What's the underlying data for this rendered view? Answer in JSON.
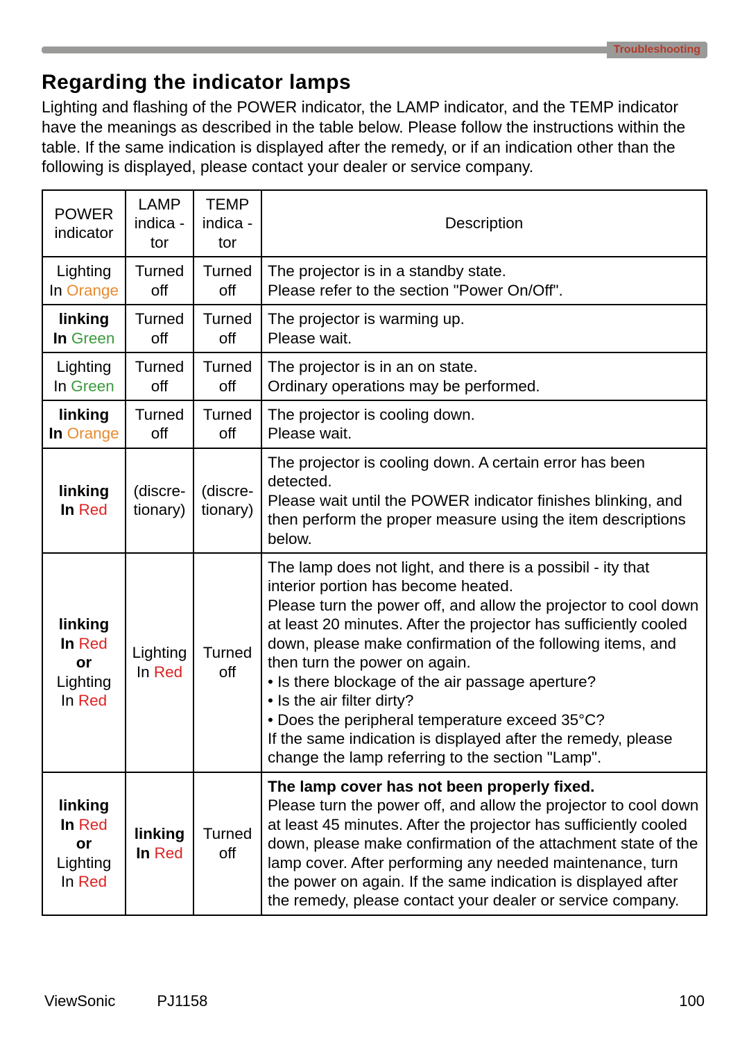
{
  "header": {
    "breadcrumb": "Troubleshooting",
    "title": "Regarding the indicator lamps",
    "intro": "Lighting and flashing of the POWER indicator, the LAMP indicator, and the TEMP indicator have the meanings as described in the table below. Please follow the instructions within the table. If the same indication is displayed after the remedy, or if an indication other than the following is displayed, please contact your dealer or service company."
  },
  "table": {
    "columns": {
      "power": "POWER indicator",
      "lamp": "LAMP indica - tor",
      "temp": "TEMP indica - tor",
      "desc": "Description"
    },
    "rows": [
      {
        "power_pre": "Lighting",
        "power_in": "In ",
        "power_color_word": "Orange",
        "power_color": "orange",
        "power_bold": false,
        "lamp": "Turned off",
        "lamp_bold": false,
        "lamp_color": "",
        "temp": "Turned off",
        "desc_strong": "",
        "desc_main": "The projector is in a standby state.",
        "desc_rest": "Please refer to the section \"Power On/Off\"."
      },
      {
        "power_pre": "linking",
        "power_in": "In ",
        "power_color_word": "Green",
        "power_color": "green",
        "power_bold": true,
        "lamp": "Turned off",
        "lamp_bold": false,
        "lamp_color": "",
        "temp": "Turned off",
        "desc_strong": "",
        "desc_main": "The projector is warming up.",
        "desc_rest": "Please wait."
      },
      {
        "power_pre": "Lighting",
        "power_in": "In ",
        "power_color_word": "Green",
        "power_color": "green",
        "power_bold": false,
        "lamp": "Turned off",
        "lamp_bold": false,
        "lamp_color": "",
        "temp": "Turned off",
        "desc_strong": "",
        "desc_main": "The projector is in an on state.",
        "desc_rest": "Ordinary operations may be performed."
      },
      {
        "power_pre": "linking",
        "power_in": "In ",
        "power_color_word": "Orange",
        "power_color": "orange",
        "power_bold": true,
        "lamp": "Turned off",
        "lamp_bold": false,
        "lamp_color": "",
        "temp": "Turned off",
        "desc_strong": "",
        "desc_main": "The projector is cooling down.",
        "desc_rest": "Please wait."
      },
      {
        "power_pre": "linking",
        "power_in": "In ",
        "power_color_word": "Red",
        "power_color": "red",
        "power_bold": true,
        "lamp": "(discre-tionary)",
        "lamp_bold": false,
        "lamp_color": "",
        "temp": "(discre-tionary)",
        "desc_strong": "",
        "desc_main": "The projector is cooling down. A certain error has been detected.",
        "desc_rest": "Please wait until the POWER indicator finishes blinking, and then perform the proper measure using the item descriptions below."
      },
      {
        "power_multi": true,
        "power_pre1": "linking",
        "power_in1": "In ",
        "power_color1_word": "Red",
        "power_color1": "red",
        "power_or": "or",
        "power_pre2": "Lighting",
        "power_in2": "In ",
        "power_color2_word": "Red",
        "power_color2": "red",
        "lamp": "Lighting\nIn ",
        "lamp_color_word": "Red",
        "lamp_color": "red",
        "lamp_bold": false,
        "temp": "Turned off",
        "desc_strong": "",
        "desc_main": "The lamp does not light, and there is a possibil       - ity that interior portion has become heated.",
        "desc_rest": "Please turn the power off, and allow the projector to cool down at least 20 minutes. After the projector has sufficiently cooled down, please make confirmation of the following items, and then turn the power on again.\n• Is there blockage of the air passage aperture?\n• Is the air filter dirty?\n• Does the peripheral temperature exceed 35°C?\nIf the same indication is displayed after the remedy, please change the lamp referring to the section \"Lamp\"."
      },
      {
        "power_multi": true,
        "power_pre1": "linking",
        "power_in1": "In ",
        "power_color1_word": "Red",
        "power_color1": "red",
        "power_or": "or",
        "power_pre2": "Lighting",
        "power_in2": "In ",
        "power_color2_word": "Red",
        "power_color2": "red",
        "lamp_pre": "linking",
        "lamp_in": "In ",
        "lamp_color_word": "Red",
        "lamp_color": "red",
        "lamp_bold": true,
        "temp": "Turned off",
        "desc_strong": "The lamp cover has not been properly fixed.",
        "desc_main": "",
        "desc_rest": "Please turn the power off, and allow the projector to cool down at least 45 minutes. After the projector has sufficiently cooled down, please make confirmation of the attachment state of the lamp cover. After performing any needed maintenance, turn the power on again. If the same indication is displayed after the remedy, please contact your dealer or service company."
      }
    ]
  },
  "footer": {
    "brand": "ViewSonic",
    "model": "PJ1158",
    "page": "100"
  }
}
